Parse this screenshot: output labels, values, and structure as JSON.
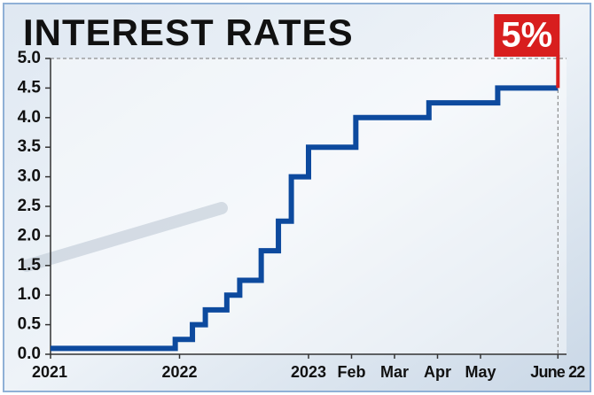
{
  "chart_data": {
    "type": "line",
    "step": true,
    "title": "INTEREST RATES",
    "annotation": "5%",
    "color": "#0d4a9e",
    "annotation_color": "#d81e1e",
    "x": [
      0,
      2.9,
      3.3,
      3.6,
      4.1,
      4.4,
      4.9,
      5.3,
      5.6,
      6.0,
      7.1,
      8.8,
      10.4,
      11.8
    ],
    "values": [
      0.1,
      0.25,
      0.5,
      0.75,
      1.0,
      1.25,
      1.75,
      2.25,
      3.0,
      3.5,
      4.0,
      4.25,
      4.5,
      4.5
    ],
    "xlim": [
      0,
      12
    ],
    "xticks": [
      {
        "value": 0,
        "label": "2021"
      },
      {
        "value": 3,
        "label": "2022"
      },
      {
        "value": 6,
        "label": "2023"
      },
      {
        "value": 7,
        "label": "Feb"
      },
      {
        "value": 8,
        "label": "Mar"
      },
      {
        "value": 9,
        "label": "Apr"
      },
      {
        "value": 10,
        "label": "May"
      },
      {
        "value": 11.8,
        "label": "June 22"
      }
    ],
    "ylim": [
      0,
      5
    ],
    "yticks": [
      {
        "value": 0,
        "label": "0.0"
      },
      0.5,
      {
        "value": 1,
        "label": "1.0"
      },
      1.5,
      {
        "value": 2,
        "label": "2.0"
      },
      2.5,
      {
        "value": 3,
        "label": "3.0"
      },
      3.5,
      {
        "value": 4,
        "label": "4.0"
      },
      4.5,
      {
        "value": 5,
        "label": "5.0"
      }
    ]
  }
}
